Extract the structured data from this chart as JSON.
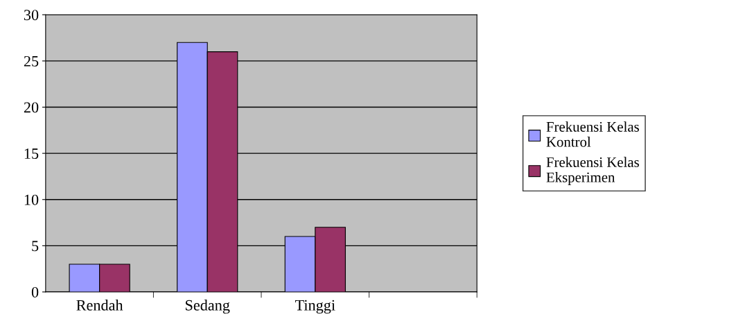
{
  "chart_data": {
    "type": "bar",
    "categories": [
      "Rendah",
      "Sedang",
      "Tinggi",
      null
    ],
    "series": [
      {
        "name": "Frekuensi Kelas\nKontrol",
        "color": "#9999ff",
        "values": [
          3,
          27,
          6,
          null
        ]
      },
      {
        "name": "Frekuensi Kelas\nEksperimen",
        "color": "#993366",
        "values": [
          3,
          26,
          7,
          null
        ]
      }
    ],
    "ylim": [
      0,
      30
    ],
    "yticks": [
      0,
      5,
      10,
      15,
      20,
      25,
      30
    ],
    "grid": "y",
    "legend": "right"
  }
}
